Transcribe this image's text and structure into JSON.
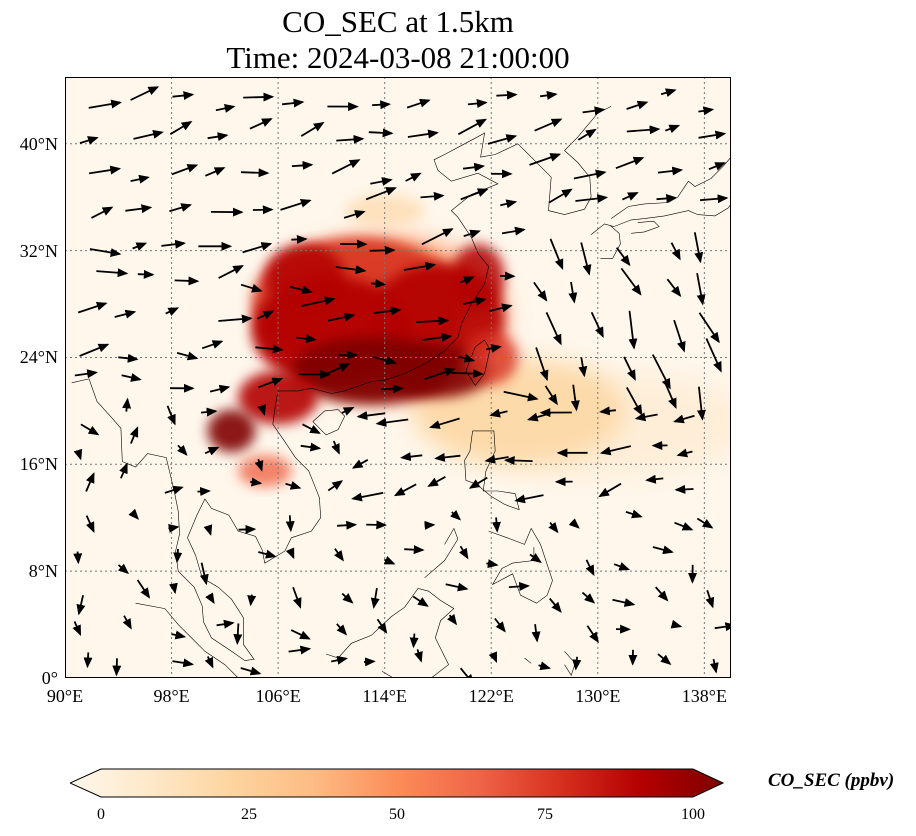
{
  "title": {
    "line1": "CO_SEC at 1.5km",
    "line2": "Time: 2024-03-08 21:00:00"
  },
  "map": {
    "extent": {
      "lon": [
        90,
        140
      ],
      "lat": [
        0,
        45
      ]
    },
    "lat_ticks": [
      {
        "value": 40,
        "label": "40°N"
      },
      {
        "value": 32,
        "label": "32°N"
      },
      {
        "value": 24,
        "label": "24°N"
      },
      {
        "value": 16,
        "label": "16°N"
      },
      {
        "value": 8,
        "label": "8°N"
      },
      {
        "value": 0,
        "label": "0°"
      }
    ],
    "lon_ticks": [
      {
        "value": 90,
        "label": "90°E"
      },
      {
        "value": 98,
        "label": "98°E"
      },
      {
        "value": 106,
        "label": "106°E"
      },
      {
        "value": 114,
        "label": "114°E"
      },
      {
        "value": 122,
        "label": "122°E"
      },
      {
        "value": 130,
        "label": "130°E"
      },
      {
        "value": 138,
        "label": "138°E"
      }
    ],
    "gridlines": true,
    "field": "CO_SEC concentration (ppbv)",
    "high_concentration_regions": [
      {
        "name": "South China / Yangtze plume",
        "lon": [
          104,
          124
        ],
        "lat": [
          19,
          34
        ],
        "peak": 100
      },
      {
        "name": "Indochina north",
        "lon": [
          100,
          105
        ],
        "lat": [
          17,
          21
        ],
        "peak": 90
      },
      {
        "name": "Indochina south",
        "lon": [
          104,
          108
        ],
        "lat": [
          14,
          17
        ],
        "peak": 70
      },
      {
        "name": "Eastward outflow tongue",
        "lon": [
          118,
          140
        ],
        "lat": [
          14,
          26
        ],
        "peak": 30
      }
    ]
  },
  "colorbar": {
    "ticks": [
      "0",
      "25",
      "50",
      "75",
      "100"
    ],
    "label": "CO_SEC (ppbv)",
    "colors": [
      "#fff7ec",
      "#fee8c8",
      "#fdd49e",
      "#fdbb84",
      "#fc8d59",
      "#ef6548",
      "#d7301f",
      "#b30000",
      "#7f0000"
    ]
  }
}
